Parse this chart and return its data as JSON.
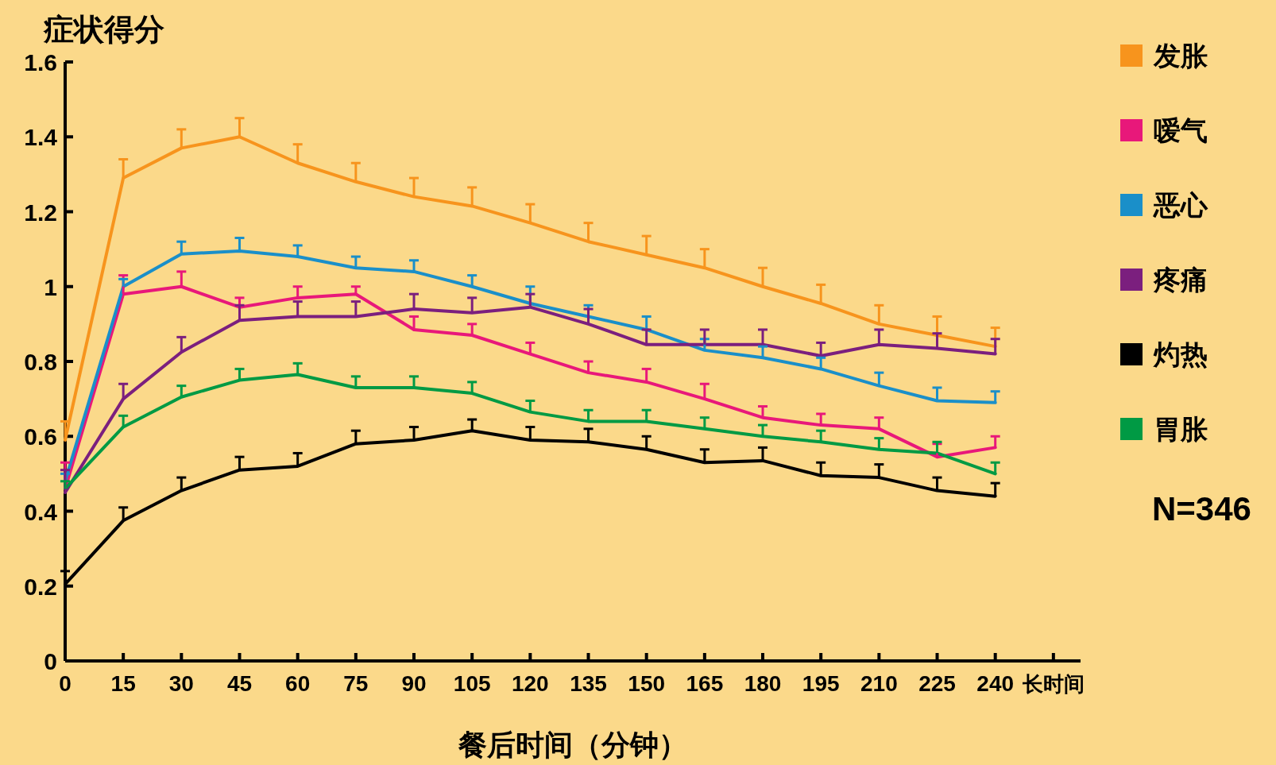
{
  "chart_data": {
    "type": "line",
    "ylabel": "症状得分",
    "xlabel": "餐后时间（分钟）",
    "x": [
      0,
      15,
      30,
      45,
      60,
      75,
      90,
      105,
      120,
      135,
      150,
      165,
      180,
      195,
      210,
      225,
      240
    ],
    "xlim": [
      0,
      262
    ],
    "ylim": [
      0,
      1.6
    ],
    "xticks": [
      0,
      15,
      30,
      45,
      60,
      75,
      90,
      105,
      120,
      135,
      150,
      165,
      180,
      195,
      210,
      225,
      240,
      {
        "value": 255,
        "label": "长时间"
      }
    ],
    "yticks": [
      0,
      0.2,
      0.4,
      0.6,
      0.8,
      1,
      1.2,
      1.4,
      1.6
    ],
    "legend": "top right",
    "grid": false,
    "marker": "none",
    "line_style": "solid",
    "annotations": [
      "N=346"
    ],
    "series": [
      {
        "name": "发胀",
        "color": "#f7941d",
        "values": [
          0.59,
          1.29,
          1.37,
          1.4,
          1.33,
          1.28,
          1.24,
          1.215,
          1.17,
          1.12,
          1.085,
          1.05,
          1.0,
          0.955,
          0.9,
          0.87,
          0.84
        ],
        "errors": [
          [
            0.59,
            0.64
          ],
          [
            1.29,
            1.34
          ],
          [
            1.37,
            1.42
          ],
          [
            1.4,
            1.45
          ],
          [
            1.33,
            1.38
          ],
          [
            1.28,
            1.33
          ],
          [
            1.24,
            1.29
          ],
          [
            1.215,
            1.265
          ],
          [
            1.17,
            1.22
          ],
          [
            1.12,
            1.17
          ],
          [
            1.085,
            1.135
          ],
          [
            1.05,
            1.1
          ],
          [
            1.0,
            1.05
          ],
          [
            0.955,
            1.005
          ],
          [
            0.9,
            0.95
          ],
          [
            0.87,
            0.92
          ],
          [
            0.84,
            0.89
          ]
        ]
      },
      {
        "name": "嗳气",
        "color": "#e8187a",
        "values": [
          0.46,
          0.98,
          1.0,
          0.945,
          0.97,
          0.98,
          0.885,
          0.87,
          0.82,
          0.77,
          0.745,
          0.7,
          0.65,
          0.63,
          0.62,
          0.545,
          0.57
        ],
        "errors": [
          [
            0.46,
            0.53
          ],
          [
            0.98,
            1.03
          ],
          [
            1.0,
            1.04
          ],
          [
            0.945,
            0.97
          ],
          [
            0.97,
            1.0
          ],
          [
            0.98,
            1.0
          ],
          [
            0.885,
            0.92
          ],
          [
            0.87,
            0.9
          ],
          [
            0.82,
            0.85
          ],
          [
            0.77,
            0.8
          ],
          [
            0.745,
            0.78
          ],
          [
            0.7,
            0.74
          ],
          [
            0.65,
            0.68
          ],
          [
            0.63,
            0.66
          ],
          [
            0.62,
            0.65
          ],
          [
            0.545,
            0.58
          ],
          [
            0.57,
            0.6
          ]
        ]
      },
      {
        "name": "恶心",
        "color": "#1a8fc9",
        "values": [
          0.48,
          1.0,
          1.087,
          1.095,
          1.08,
          1.05,
          1.04,
          1.0,
          0.955,
          0.92,
          0.885,
          0.83,
          0.81,
          0.78,
          0.735,
          0.695,
          0.69
        ],
        "errors": [
          [
            0.48,
            0.5
          ],
          [
            1.0,
            1.02
          ],
          [
            1.087,
            1.12
          ],
          [
            1.095,
            1.13
          ],
          [
            1.08,
            1.11
          ],
          [
            1.05,
            1.08
          ],
          [
            1.04,
            1.07
          ],
          [
            1.0,
            1.03
          ],
          [
            0.955,
            1.0
          ],
          [
            0.92,
            0.95
          ],
          [
            0.885,
            0.92
          ],
          [
            0.83,
            0.86
          ],
          [
            0.81,
            0.84
          ],
          [
            0.78,
            0.81
          ],
          [
            0.735,
            0.77
          ],
          [
            0.695,
            0.73
          ],
          [
            0.69,
            0.72
          ]
        ]
      },
      {
        "name": "疼痛",
        "color": "#7b1f7e",
        "values": [
          0.45,
          0.7,
          0.825,
          0.91,
          0.92,
          0.92,
          0.94,
          0.93,
          0.945,
          0.9,
          0.845,
          0.845,
          0.845,
          0.815,
          0.845,
          0.835,
          0.82
        ],
        "errors": [
          [
            0.45,
            0.51
          ],
          [
            0.7,
            0.74
          ],
          [
            0.825,
            0.865
          ],
          [
            0.91,
            0.95
          ],
          [
            0.92,
            0.96
          ],
          [
            0.92,
            0.96
          ],
          [
            0.94,
            0.98
          ],
          [
            0.93,
            0.97
          ],
          [
            0.945,
            0.98
          ],
          [
            0.9,
            0.94
          ],
          [
            0.845,
            0.885
          ],
          [
            0.845,
            0.885
          ],
          [
            0.845,
            0.885
          ],
          [
            0.815,
            0.85
          ],
          [
            0.845,
            0.885
          ],
          [
            0.835,
            0.875
          ],
          [
            0.82,
            0.86
          ]
        ]
      },
      {
        "name": "灼热",
        "color": "#000000",
        "values": [
          0.205,
          0.375,
          0.455,
          0.51,
          0.52,
          0.58,
          0.59,
          0.615,
          0.59,
          0.585,
          0.565,
          0.53,
          0.535,
          0.495,
          0.49,
          0.455,
          0.44
        ],
        "errors": [
          [
            0.205,
            0.24
          ],
          [
            0.375,
            0.41
          ],
          [
            0.455,
            0.49
          ],
          [
            0.51,
            0.545
          ],
          [
            0.52,
            0.555
          ],
          [
            0.58,
            0.615
          ],
          [
            0.59,
            0.625
          ],
          [
            0.615,
            0.645
          ],
          [
            0.59,
            0.625
          ],
          [
            0.585,
            0.62
          ],
          [
            0.565,
            0.6
          ],
          [
            0.53,
            0.565
          ],
          [
            0.535,
            0.57
          ],
          [
            0.495,
            0.53
          ],
          [
            0.49,
            0.525
          ],
          [
            0.455,
            0.49
          ],
          [
            0.44,
            0.475
          ]
        ]
      },
      {
        "name": "胃胀",
        "color": "#009a44",
        "values": [
          0.46,
          0.625,
          0.705,
          0.75,
          0.765,
          0.73,
          0.73,
          0.715,
          0.665,
          0.64,
          0.64,
          0.62,
          0.6,
          0.585,
          0.565,
          0.555,
          0.5
        ],
        "errors": [
          [
            0.46,
            0.48
          ],
          [
            0.625,
            0.655
          ],
          [
            0.705,
            0.735
          ],
          [
            0.75,
            0.78
          ],
          [
            0.765,
            0.795
          ],
          [
            0.73,
            0.76
          ],
          [
            0.73,
            0.76
          ],
          [
            0.715,
            0.745
          ],
          [
            0.665,
            0.695
          ],
          [
            0.64,
            0.67
          ],
          [
            0.64,
            0.67
          ],
          [
            0.62,
            0.65
          ],
          [
            0.6,
            0.63
          ],
          [
            0.585,
            0.615
          ],
          [
            0.565,
            0.595
          ],
          [
            0.555,
            0.585
          ],
          [
            0.5,
            0.53
          ]
        ]
      }
    ]
  }
}
